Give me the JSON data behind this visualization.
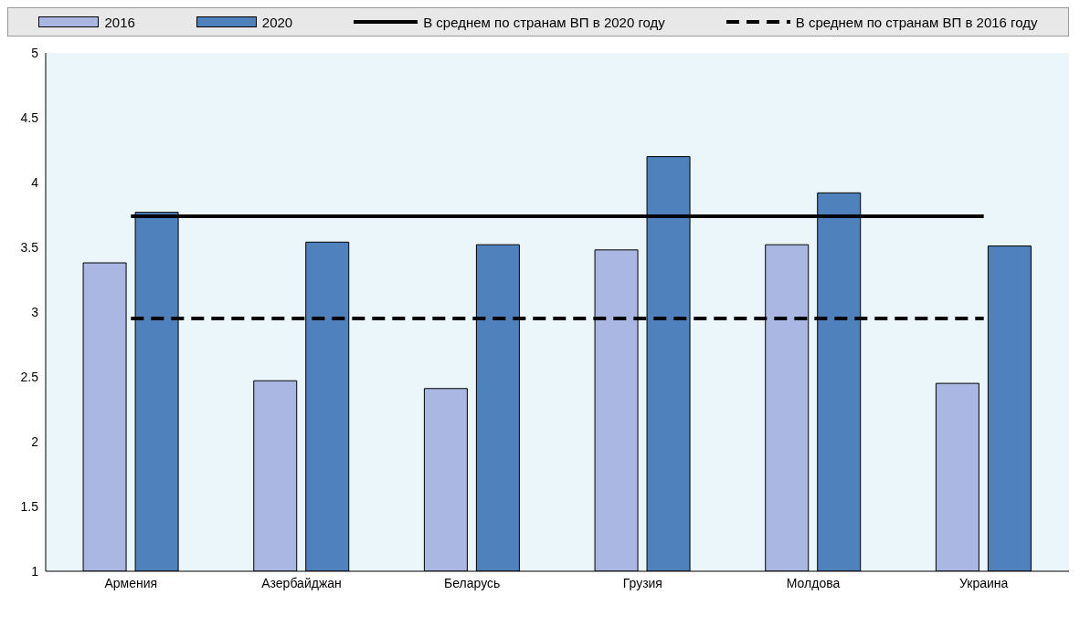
{
  "chart_data": {
    "type": "bar",
    "categories": [
      "Армения",
      "Азербайджан",
      "Беларусь",
      "Грузия",
      "Молдова",
      "Украина"
    ],
    "series": [
      {
        "name": "2016",
        "color": "#a9b7e2",
        "values": [
          3.38,
          2.47,
          2.41,
          3.48,
          3.52,
          2.45
        ]
      },
      {
        "name": "2020",
        "color": "#4f81bd",
        "values": [
          3.77,
          3.54,
          3.52,
          4.2,
          3.92,
          3.51
        ]
      },
      {
        "name": "В среднем по странам ВП в 2020 году",
        "type": "line",
        "color": "#000000",
        "line_style": "solid",
        "values": [
          3.74,
          3.74,
          3.74,
          3.74,
          3.74,
          3.74
        ]
      },
      {
        "name": "В среднем по странам ВП в 2016 году",
        "type": "line",
        "color": "#000000",
        "line_style": "dashed",
        "values": [
          2.95,
          2.95,
          2.95,
          2.95,
          2.95,
          2.95
        ]
      }
    ],
    "ylim": [
      1,
      5
    ],
    "yticks": [
      1,
      1.5,
      2,
      2.5,
      3,
      3.5,
      4,
      4.5,
      5
    ],
    "grid": false,
    "legend": "top",
    "marker": "none"
  }
}
